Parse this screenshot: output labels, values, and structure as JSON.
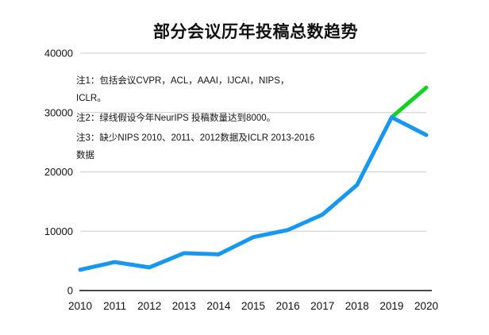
{
  "colors": {
    "axis": "#111111",
    "gridline": "#cccccc",
    "text": "#111111",
    "blue_line": "#1498f2",
    "green_line": "#0ed321",
    "background": "#ffffff"
  },
  "chart_data": {
    "type": "line",
    "title": "部分会议历年投稿总数趋势",
    "xlabel": "",
    "ylabel": "",
    "x": [
      "2010",
      "2011",
      "2012",
      "2013",
      "2014",
      "2015",
      "2016",
      "2017",
      "2018",
      "2019",
      "2020"
    ],
    "ylim": [
      0,
      40000
    ],
    "yticks": [
      0,
      10000,
      20000,
      30000,
      40000
    ],
    "grid": true,
    "legend_position": "none",
    "series": [
      {
        "name": "total-submissions-blue-line",
        "color": "#1498f2",
        "x": [
          "2010",
          "2011",
          "2012",
          "2013",
          "2014",
          "2015",
          "2016",
          "2017",
          "2018",
          "2019",
          "2020"
        ],
        "values": [
          3500,
          4800,
          3900,
          6300,
          6100,
          9000,
          10200,
          12800,
          17800,
          29200,
          26200
        ]
      },
      {
        "name": "assumed-neurips-8000-green-line",
        "color": "#0ed321",
        "x": [
          "2019",
          "2020"
        ],
        "values": [
          29200,
          34200
        ]
      }
    ],
    "annotations": [
      "注1：包括会议CVPR，ACL，AAAI，IJCAI，NIPS，ICLR。",
      "注2：绿线假设今年NeurIPS 投稿数量达到8000。",
      "注3：缺少NIPS 2010、2011、2012数据及ICLR 2013-2016数据"
    ]
  }
}
